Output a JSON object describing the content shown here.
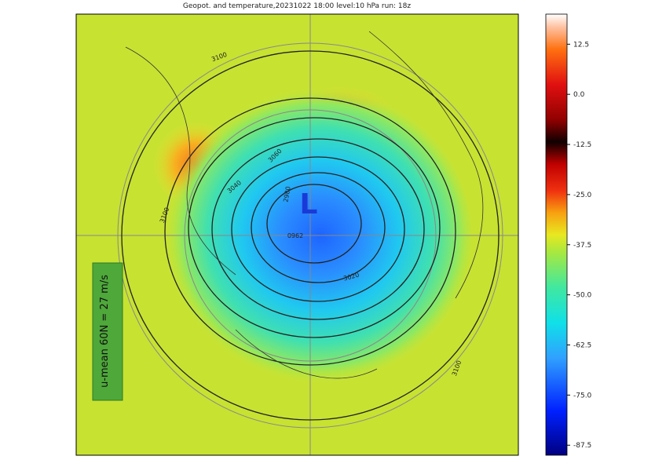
{
  "title": "Geopot. and temperature,20231022 18:00 level:10 hPa run: 18z",
  "low_label": "L",
  "annotation": "u-mean 60N = 27 m/s",
  "contour_labels": [
    "3100",
    "3100",
    "3060",
    "3040",
    "2980",
    "0962",
    "3020",
    "3100"
  ],
  "colorbar": {
    "lim": [
      -90,
      20
    ],
    "ticks": [
      12.5,
      {
        "value": 0,
        "label": "0.0"
      },
      -12.5,
      {
        "value": -25,
        "label": "-25.0"
      },
      -37.5,
      {
        "value": -50,
        "label": "-50.0"
      },
      -62.5,
      {
        "value": -75,
        "label": "-75.0"
      },
      -87.5
    ]
  }
}
